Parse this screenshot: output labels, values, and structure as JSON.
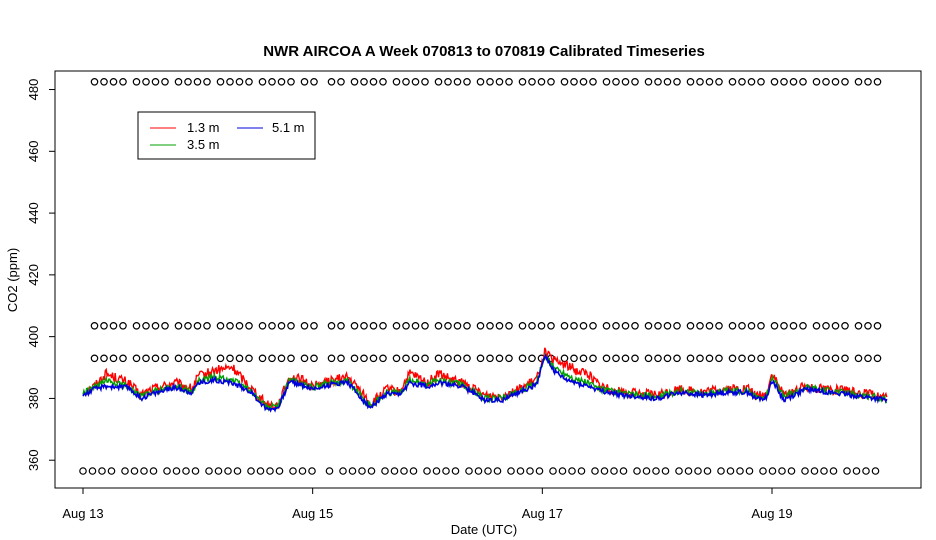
{
  "chart_data": {
    "type": "line",
    "title": "NWR AIRCOA A  Week 070813 to 070819  Calibrated Timeseries",
    "xlabel": "Date (UTC)",
    "ylabel": "CO2 (ppm)",
    "xlim": [
      -0.25,
      7.2
    ],
    "ylim": [
      351,
      486
    ],
    "x_ticks": [
      {
        "value": 0,
        "label": "Aug 13"
      },
      {
        "value": 2,
        "label": "Aug 15"
      },
      {
        "value": 4,
        "label": "Aug 17"
      },
      {
        "value": 6,
        "label": "Aug 19"
      }
    ],
    "y_ticks": [
      360,
      380,
      400,
      420,
      440,
      460,
      480
    ],
    "grid": false,
    "legend": {
      "placement": "top-left",
      "entries": [
        {
          "label": "1.3 m",
          "color": "#ff0000"
        },
        {
          "label": "3.5 m",
          "color": "#00a000"
        },
        {
          "label": "5.1 m",
          "color": "#0000dd"
        }
      ]
    },
    "x_unit": "days since Aug 13 00:00 UTC",
    "series_anchor_x": [
      0,
      0.1,
      0.2,
      0.4,
      0.5,
      0.6,
      0.8,
      0.95,
      1.0,
      1.15,
      1.3,
      1.45,
      1.6,
      1.7,
      1.8,
      1.9,
      2.0,
      2.1,
      2.3,
      2.45,
      2.5,
      2.65,
      2.75,
      2.85,
      3.0,
      3.1,
      3.2,
      3.3,
      3.5,
      3.65,
      3.8,
      3.95,
      4.02,
      4.1,
      4.2,
      4.3,
      4.4,
      4.5,
      4.7,
      5.0,
      5.2,
      5.4,
      5.6,
      5.8,
      5.85,
      5.95,
      6.0,
      6.1,
      6.3,
      6.5,
      6.7,
      6.9,
      7.0
    ],
    "series": [
      {
        "name": "1.3 m",
        "color": "#ff0000",
        "values": [
          382,
          384,
          388,
          385,
          381,
          383,
          385,
          383,
          387,
          389,
          390,
          384,
          378,
          378,
          387,
          386,
          384,
          385,
          387,
          381,
          378,
          383,
          382,
          388,
          385,
          388,
          386,
          385,
          381,
          381,
          383,
          386,
          395,
          392,
          391,
          389,
          388,
          384,
          382,
          381,
          383,
          382,
          383,
          383,
          381,
          381,
          388,
          381,
          384,
          383,
          382,
          381,
          380
        ]
      },
      {
        "name": "3.5 m",
        "color": "#00a000",
        "values": [
          381.5,
          383.5,
          385.5,
          384,
          380.5,
          382,
          384,
          382,
          385.5,
          387,
          386,
          383,
          377,
          377.5,
          386,
          385,
          383.5,
          384.5,
          386,
          379.5,
          377.5,
          382,
          381.5,
          386,
          384.5,
          386,
          385,
          384.5,
          380,
          380,
          382.5,
          385,
          394,
          390,
          388,
          386,
          385,
          383,
          381.5,
          380.5,
          382.5,
          381.5,
          382.5,
          382.5,
          380.5,
          380.5,
          387,
          380.5,
          383.5,
          382.5,
          381.5,
          380.5,
          379.5
        ]
      },
      {
        "name": "5.1 m",
        "color": "#0000dd",
        "values": [
          381,
          383,
          384,
          383.5,
          380,
          381.5,
          383.5,
          382,
          385,
          386,
          385,
          382.5,
          376.5,
          377,
          385.5,
          384.5,
          383,
          384,
          385.5,
          379,
          377,
          381.5,
          381,
          385,
          384,
          385,
          384.5,
          384,
          379.5,
          379.5,
          382,
          384.5,
          394,
          389,
          386,
          385,
          384,
          382.5,
          381,
          380,
          382,
          381,
          382,
          382,
          380,
          380,
          386,
          379.5,
          383,
          382,
          381,
          380,
          379.5
        ]
      }
    ],
    "marker_rows": [
      {
        "y": 482.5,
        "x_start": 0.1,
        "x_end": 7.0
      },
      {
        "y": 403.5,
        "x_start": 0.1,
        "x_end": 7.0
      },
      {
        "y": 393,
        "x_start": 0.1,
        "x_end": 7.0
      },
      {
        "y": 356.5,
        "x_start": 0.0,
        "x_end": 7.0
      }
    ],
    "marker_style": "open-circle"
  }
}
